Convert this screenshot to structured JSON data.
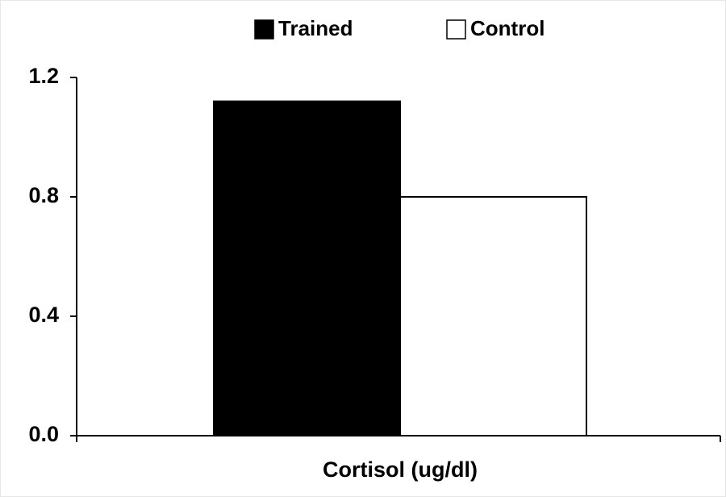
{
  "chart_data": {
    "type": "bar",
    "categories": [
      "Cortisol (ug/dl)"
    ],
    "series": [
      {
        "name": "Trained",
        "color": "#000000",
        "values": [
          1.12
        ]
      },
      {
        "name": "Control",
        "color": "#ffffff",
        "values": [
          0.8
        ]
      }
    ],
    "ylim": [
      0,
      1.2
    ],
    "yticks": [
      {
        "value": 0,
        "label": "0.0"
      },
      0.4,
      0.8,
      1.2
    ],
    "legend": "top"
  }
}
